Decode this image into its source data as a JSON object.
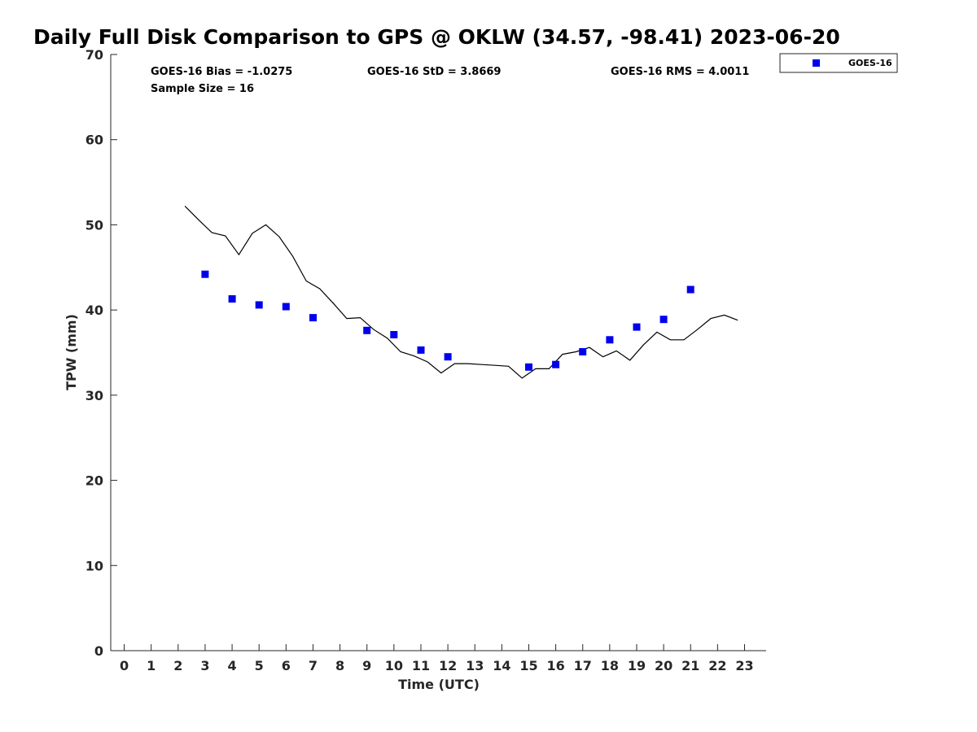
{
  "chart_data": {
    "type": "scatter",
    "title": "Daily Full Disk Comparison to GPS @ OKLW (34.57, -98.41) 2023-06-20",
    "xlabel": "Time (UTC)",
    "ylabel": "TPW (mm)",
    "xlim": [
      -0.5,
      23.8
    ],
    "ylim": [
      0,
      70
    ],
    "x_ticks": [
      "0",
      "1",
      "2",
      "3",
      "4",
      "5",
      "6",
      "7",
      "8",
      "9",
      "10",
      "11",
      "12",
      "13",
      "14",
      "15",
      "16",
      "17",
      "18",
      "19",
      "20",
      "21",
      "22",
      "23"
    ],
    "y_ticks": [
      "0",
      "10",
      "20",
      "30",
      "40",
      "50",
      "60",
      "70"
    ],
    "grid": false,
    "legend_position": "top-right",
    "stats": {
      "bias": "GOES-16 Bias = -1.0275",
      "std": "GOES-16 StD = 3.8669",
      "rms": "GOES-16 RMS = 4.0011",
      "sample": "Sample Size = 16"
    },
    "series": [
      {
        "name": "GOES-16",
        "kind": "scatter",
        "color": "#0000ee",
        "x": [
          3.0,
          4.0,
          5.0,
          6.0,
          7.0,
          9.0,
          10.0,
          11.0,
          12.0,
          15.0,
          16.0,
          17.0,
          18.0,
          19.0,
          20.0,
          21.0
        ],
        "y": [
          44.2,
          41.3,
          40.6,
          40.4,
          39.1,
          37.6,
          37.1,
          35.3,
          34.5,
          33.3,
          33.6,
          35.1,
          36.5,
          38.0,
          38.9,
          42.4
        ]
      },
      {
        "kind": "line",
        "color": "#000000",
        "x": [
          2.25,
          2.75,
          3.25,
          3.75,
          4.25,
          4.75,
          5.25,
          5.75,
          6.25,
          6.75,
          7.25,
          7.75,
          8.25,
          8.75,
          9.25,
          9.75,
          10.25,
          10.75,
          11.25,
          11.75,
          12.25,
          12.75,
          13.25,
          13.75,
          14.25,
          14.75,
          15.25,
          15.75,
          16.25,
          16.75,
          17.25,
          17.75,
          18.25,
          18.75,
          19.25,
          19.75,
          20.25,
          20.75,
          21.25,
          21.75,
          22.25,
          22.75
        ],
        "y": [
          52.2,
          50.6,
          49.1,
          48.7,
          46.5,
          49.0,
          50.0,
          48.6,
          46.3,
          43.4,
          42.5,
          40.8,
          39.0,
          39.1,
          37.7,
          36.7,
          35.1,
          34.6,
          33.9,
          32.6,
          33.7,
          33.7,
          33.6,
          33.5,
          33.4,
          32.0,
          33.1,
          33.1,
          34.8,
          35.1,
          35.6,
          34.5,
          35.2,
          34.1,
          35.9,
          37.4,
          36.5,
          36.5,
          37.7,
          39.0,
          39.4,
          38.8
        ]
      }
    ]
  }
}
